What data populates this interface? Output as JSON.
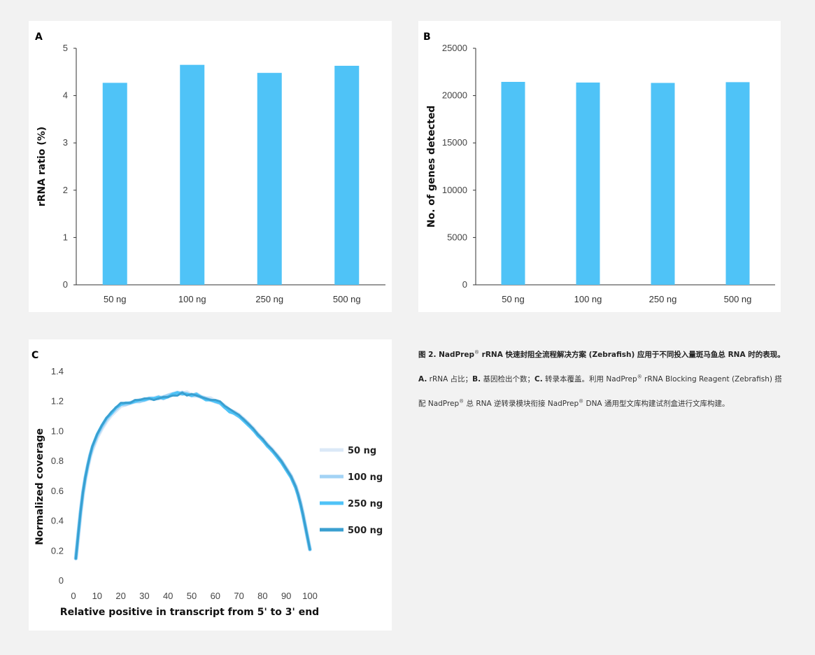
{
  "chart_data": [
    {
      "id": "A",
      "type": "bar",
      "panel_label": "A",
      "categories": [
        "50 ng",
        "100 ng",
        "250 ng",
        "500 ng"
      ],
      "values": [
        4.27,
        4.65,
        4.48,
        4.63
      ],
      "ylabel": "rRNA ratio (%)",
      "xlabel": "",
      "ylim": [
        0,
        5
      ],
      "yticks": [
        "0",
        "1",
        "2",
        "3",
        "4",
        "5"
      ],
      "color": "#4fc3f7"
    },
    {
      "id": "B",
      "type": "bar",
      "panel_label": "B",
      "categories": [
        "50 ng",
        "100 ng",
        "250 ng",
        "500 ng"
      ],
      "values": [
        21450,
        21380,
        21340,
        21420
      ],
      "ylabel": "No. of genes detected",
      "xlabel": "",
      "ylim": [
        0,
        25000
      ],
      "yticks": [
        "0",
        "5000",
        "10000",
        "15000",
        "20000",
        "25000"
      ],
      "color": "#4fc3f7"
    },
    {
      "id": "C",
      "type": "line",
      "panel_label": "C",
      "xlabel": "Relative positive in transcript from 5' to 3' end",
      "ylabel": "Normalized coverage",
      "xlim": [
        0,
        100
      ],
      "ylim": [
        0,
        1.4
      ],
      "xticks": [
        "0",
        "10",
        "20",
        "30",
        "40",
        "50",
        "60",
        "70",
        "80",
        "90",
        "100"
      ],
      "yticks": [
        "0",
        "0.2",
        "0.4",
        "0.6",
        "0.8",
        "1.0",
        "1.2",
        "1.4"
      ],
      "x": [
        1,
        2,
        3,
        4,
        5,
        6,
        7,
        8,
        10,
        12,
        14,
        16,
        18,
        20,
        22,
        24,
        26,
        28,
        30,
        32,
        34,
        36,
        38,
        40,
        42,
        44,
        46,
        48,
        50,
        52,
        54,
        56,
        58,
        60,
        62,
        64,
        66,
        68,
        70,
        72,
        74,
        76,
        78,
        80,
        82,
        84,
        86,
        88,
        90,
        92,
        94,
        95,
        96,
        97,
        98,
        99,
        100
      ],
      "series": [
        {
          "name": "50 ng",
          "color": "#dbe9f7",
          "values": [
            0.15,
            0.3,
            0.45,
            0.58,
            0.68,
            0.76,
            0.83,
            0.88,
            0.96,
            1.02,
            1.07,
            1.11,
            1.14,
            1.17,
            1.18,
            1.19,
            1.2,
            1.21,
            1.21,
            1.22,
            1.22,
            1.23,
            1.22,
            1.24,
            1.25,
            1.26,
            1.25,
            1.26,
            1.24,
            1.25,
            1.23,
            1.22,
            1.22,
            1.2,
            1.19,
            1.17,
            1.14,
            1.13,
            1.11,
            1.08,
            1.05,
            1.02,
            0.98,
            0.95,
            0.91,
            0.88,
            0.84,
            0.8,
            0.75,
            0.7,
            0.63,
            0.58,
            0.52,
            0.45,
            0.37,
            0.29,
            0.21
          ]
        },
        {
          "name": "100 ng",
          "color": "#a3d3f5",
          "values": [
            0.15,
            0.31,
            0.46,
            0.59,
            0.69,
            0.77,
            0.84,
            0.89,
            0.97,
            1.03,
            1.08,
            1.12,
            1.15,
            1.18,
            1.18,
            1.19,
            1.2,
            1.2,
            1.21,
            1.22,
            1.22,
            1.22,
            1.23,
            1.24,
            1.25,
            1.25,
            1.26,
            1.25,
            1.24,
            1.24,
            1.23,
            1.22,
            1.21,
            1.2,
            1.19,
            1.16,
            1.14,
            1.12,
            1.1,
            1.08,
            1.05,
            1.01,
            0.98,
            0.94,
            0.91,
            0.87,
            0.84,
            0.8,
            0.75,
            0.7,
            0.63,
            0.58,
            0.52,
            0.45,
            0.37,
            0.29,
            0.21
          ]
        },
        {
          "name": "250 ng",
          "color": "#4fc3f7",
          "values": [
            0.15,
            0.31,
            0.46,
            0.59,
            0.69,
            0.77,
            0.84,
            0.9,
            0.98,
            1.04,
            1.09,
            1.12,
            1.16,
            1.18,
            1.19,
            1.19,
            1.2,
            1.21,
            1.21,
            1.22,
            1.22,
            1.23,
            1.22,
            1.23,
            1.25,
            1.26,
            1.25,
            1.25,
            1.24,
            1.25,
            1.23,
            1.21,
            1.21,
            1.2,
            1.19,
            1.16,
            1.13,
            1.12,
            1.1,
            1.07,
            1.04,
            1.01,
            0.97,
            0.94,
            0.9,
            0.87,
            0.83,
            0.79,
            0.74,
            0.69,
            0.62,
            0.57,
            0.51,
            0.44,
            0.37,
            0.29,
            0.21
          ]
        },
        {
          "name": "500 ng",
          "color": "#3a9fd0",
          "values": [
            0.15,
            0.31,
            0.46,
            0.59,
            0.69,
            0.77,
            0.84,
            0.9,
            0.98,
            1.04,
            1.09,
            1.13,
            1.16,
            1.19,
            1.19,
            1.19,
            1.21,
            1.21,
            1.22,
            1.22,
            1.21,
            1.22,
            1.23,
            1.23,
            1.24,
            1.24,
            1.26,
            1.24,
            1.25,
            1.24,
            1.23,
            1.22,
            1.21,
            1.21,
            1.2,
            1.17,
            1.15,
            1.13,
            1.11,
            1.08,
            1.05,
            1.02,
            0.98,
            0.95,
            0.91,
            0.88,
            0.84,
            0.8,
            0.75,
            0.7,
            0.63,
            0.58,
            0.52,
            0.45,
            0.37,
            0.29,
            0.21
          ]
        }
      ],
      "legend": "right"
    }
  ],
  "caption": {
    "title_prefix": "图 2. NadPrep",
    "reg": "®",
    "title_suffix": " rRNA 快速封阻全流程解决方案 (Zebrafish) 应用于不同投入量斑马鱼总 RNA 时的表现。",
    "a_label": "A.",
    "a_text": " rRNA 占比；",
    "b_label": "B.",
    "b_text": " 基因检出个数；",
    "c_label": "C.",
    "c_text": " 转录本覆盖。",
    "body1": "利用 NadPrep",
    "body2": " rRNA Blocking Reagent (Zebrafish) 搭配 NadPrep",
    "body3": " 总 RNA 逆转录模块衔接 NadPrep",
    "body4": " DNA 通用型文库构建试剂盒进行文库构建。"
  }
}
